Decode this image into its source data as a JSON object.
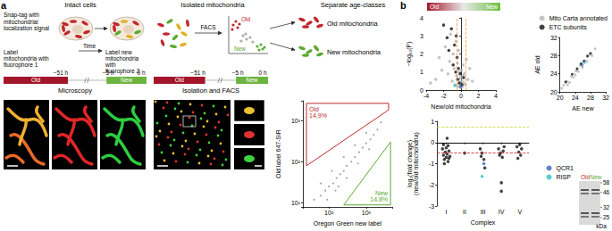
{
  "figure": {
    "panel_labels": [
      "a",
      "b"
    ],
    "a": {
      "headers": [
        "Intact cells",
        "Isolated mitochondria",
        "Separate age-classes"
      ],
      "snap_tag": "Snap-tag with mitochondrial localization signal",
      "step1": "Label mitochondria with fluorophore 1",
      "time": "Time",
      "step2": "Label new mitochondria with fluorophore 2",
      "facs_arrow": "FACS",
      "gate_old": "Old",
      "gate_new": "New",
      "old_mito": "Old mitochondria",
      "new_mito": "New mitochondria",
      "timelines": [
        {
          "times": [
            "−51 h",
            "−5 h",
            "0 h"
          ],
          "old": "Old",
          "new": "New",
          "caption": "Microscopy"
        },
        {
          "times": [
            "−51 h",
            "−5 h",
            "0 h"
          ],
          "old": "Old",
          "new": "New",
          "caption": "Isolation and FACS"
        }
      ]
    },
    "b": {
      "gradient": {
        "old": "Old",
        "new": "New"
      },
      "gel": {
        "lanes": [
          "Old",
          "New"
        ],
        "markers": [
          58,
          46,
          32,
          25
        ],
        "unit": "kDa"
      }
    }
  },
  "chart_data": [
    {
      "type": "scatter",
      "log": true,
      "x_label": "Oregon Green new label",
      "y_label": "Old label 647-SiR",
      "xlim": [
        20,
        5000
      ],
      "ylim": [
        8,
        3000
      ],
      "xticks": [
        {
          "value": 100,
          "label": "10²"
        },
        {
          "value": 1000,
          "label": "10³"
        }
      ],
      "yticks": [
        {
          "value": 10,
          "label": "10¹"
        },
        {
          "value": 100,
          "label": "10²"
        },
        {
          "value": 1000,
          "label": "10³"
        }
      ],
      "grid": false,
      "series": [
        {
          "color": "#8c8c8c",
          "values": [
            [
              40,
              12
            ],
            [
              60,
              15
            ],
            [
              80,
              20
            ],
            [
              100,
              25
            ],
            [
              130,
              30
            ],
            [
              160,
              40
            ],
            [
              200,
              50
            ],
            [
              250,
              60
            ],
            [
              300,
              80
            ],
            [
              400,
              100
            ],
            [
              500,
              130
            ],
            [
              650,
              170
            ],
            [
              800,
              220
            ],
            [
              1000,
              280
            ],
            [
              1300,
              350
            ],
            [
              1600,
              450
            ],
            [
              2000,
              600
            ],
            [
              60,
              30
            ],
            [
              120,
              60
            ],
            [
              250,
              130
            ],
            [
              500,
              250
            ],
            [
              1000,
              500
            ],
            [
              150,
              20
            ],
            [
              300,
              40
            ],
            [
              600,
              90
            ],
            [
              1200,
              200
            ],
            [
              2500,
              900
            ],
            [
              90,
              12
            ],
            [
              180,
              25
            ]
          ]
        }
      ],
      "gates": [
        {
          "name": "Old",
          "label": "14.9%",
          "color": "#c0282d",
          "x": [
            25,
            25,
            4000,
            4000,
            25
          ],
          "y": [
            80,
            2600,
            2600,
            1800,
            80
          ]
        },
        {
          "name": "New",
          "label": "14.8%",
          "color": "#5aaa32",
          "x": [
            250,
            4500,
            4500,
            250
          ],
          "y": [
            9,
            9,
            300,
            9
          ]
        }
      ]
    },
    {
      "type": "scatter",
      "x_label": "New/old mitochondria",
      "y_label": "−log₁₀(P)",
      "xlim": [
        -4,
        4
      ],
      "xticks": [
        -4,
        -2,
        0,
        2,
        4
      ],
      "ylim": [
        0,
        4
      ],
      "yticks": [
        0,
        1,
        2,
        3,
        4
      ],
      "grid": false,
      "legend": "upper right",
      "reference_lines": [
        {
          "axis": "x",
          "value": -0.5,
          "color": "#f0a030",
          "line_style": "dashed"
        },
        {
          "axis": "x",
          "value": 0.5,
          "color": "#f0a030",
          "line_style": "dashed"
        }
      ],
      "series": [
        {
          "name": "Mito Carta annotated",
          "color": "#b5b5b5",
          "values": [
            [
              -2.9,
              0.6
            ],
            [
              -2.2,
              1.1
            ],
            [
              -1.8,
              2.4
            ],
            [
              -1.5,
              0.9
            ],
            [
              -1.3,
              1.6
            ],
            [
              -1.2,
              3.1
            ],
            [
              -1.0,
              0.5
            ],
            [
              -0.9,
              2.0
            ],
            [
              -0.8,
              1.2
            ],
            [
              -0.7,
              0.3
            ],
            [
              -0.6,
              2.7
            ],
            [
              -0.5,
              0.8
            ],
            [
              -0.4,
              1.5
            ],
            [
              -0.35,
              0.2
            ],
            [
              -0.3,
              2.2
            ],
            [
              -0.25,
              0.6
            ],
            [
              -0.2,
              1.0
            ],
            [
              -0.15,
              0.4
            ],
            [
              -0.1,
              0.15
            ],
            [
              -0.05,
              0.7
            ],
            [
              0,
              0.3
            ],
            [
              0.05,
              1.1
            ],
            [
              0.1,
              0.5
            ],
            [
              0.15,
              0.2
            ],
            [
              0.2,
              0.8
            ],
            [
              0.25,
              1.4
            ],
            [
              0.3,
              0.4
            ],
            [
              0.4,
              0.9
            ],
            [
              0.5,
              0.3
            ],
            [
              0.6,
              1.7
            ],
            [
              0.8,
              0.6
            ],
            [
              1.0,
              1.2
            ],
            [
              1.3,
              0.5
            ],
            [
              -3.5,
              0.4
            ],
            [
              -2.5,
              1.8
            ]
          ]
        },
        {
          "name": "ETC subunits",
          "color": "#111111",
          "values": [
            [
              -2.0,
              3.6
            ],
            [
              -1.6,
              2.9
            ],
            [
              -1.4,
              2.2
            ],
            [
              -1.1,
              3.4
            ],
            [
              -0.9,
              1.4
            ],
            [
              -0.75,
              2.5
            ],
            [
              -0.6,
              1.0
            ],
            [
              -0.55,
              3.0
            ],
            [
              -0.45,
              1.8
            ],
            [
              -0.4,
              0.6
            ],
            [
              -0.3,
              1.2
            ],
            [
              -0.2,
              0.4
            ],
            [
              -0.1,
              0.9
            ],
            [
              0.1,
              0.3
            ],
            [
              0.3,
              0.7
            ],
            [
              -0.05,
              0.2
            ],
            [
              -0.7,
              0.25
            ]
          ],
          "colors": [
            "#111111",
            "#111111",
            "#111111",
            "#111111",
            "#111111",
            "#111111",
            "#111111",
            "#111111",
            "#111111",
            "#111111",
            "#111111",
            "#111111",
            "#111111",
            "#111111",
            "#111111",
            "#3b63c4",
            "#2fc0c9"
          ]
        }
      ]
    },
    {
      "type": "scatter",
      "x_label": "AE new",
      "y_label": "AE old",
      "xlim": [
        20,
        32
      ],
      "xticks": [
        20,
        24,
        28,
        32
      ],
      "ylim": [
        20,
        32
      ],
      "yticks": [
        20,
        24,
        28,
        32
      ],
      "grid": false,
      "series": [
        {
          "color": "#b5b5b5",
          "values": [
            [
              20.5,
              20.8
            ],
            [
              21,
              21.5
            ],
            [
              21.8,
              22.3
            ],
            [
              22.5,
              22.1
            ],
            [
              23,
              23.4
            ],
            [
              23.6,
              23.2
            ],
            [
              24.2,
              24.6
            ],
            [
              24.8,
              24.5
            ],
            [
              25.3,
              25.8
            ],
            [
              25.9,
              25.4
            ],
            [
              26.5,
              26.9
            ],
            [
              27.1,
              26.8
            ],
            [
              27.8,
              28.2
            ],
            [
              28.4,
              28.0
            ],
            [
              29.2,
              29.5
            ],
            [
              22,
              21.6
            ],
            [
              24,
              23.8
            ],
            [
              26,
              26.4
            ]
          ]
        },
        {
          "color": "#111111",
          "values": [
            [
              23.2,
              23.9
            ],
            [
              24.5,
              25.1
            ],
            [
              25.5,
              26.2
            ],
            [
              26.3,
              26.8
            ],
            [
              27.2,
              27.9
            ],
            [
              28,
              28.5
            ],
            [
              21.5,
              22.2
            ],
            [
              25.8,
              25.9
            ],
            [
              26.5,
              26.5
            ]
          ],
          "colors": [
            "#111111",
            "#111111",
            "#111111",
            "#111111",
            "#111111",
            "#111111",
            "#111111",
            "#3b63c4",
            "#2fc0c9"
          ]
        }
      ]
    },
    {
      "type": "scatter",
      "x_label": "Complex",
      "y_label": "log₂(fold change)\n(new/old mitochondria)",
      "xlim": [
        0.5,
        5.5
      ],
      "xticks": [
        {
          "value": 1,
          "label": "I"
        },
        {
          "value": 2,
          "label": "II"
        },
        {
          "value": 3,
          "label": "III"
        },
        {
          "value": 4,
          "label": "IV"
        },
        {
          "value": 5,
          "label": "V"
        }
      ],
      "ylim": [
        -3,
        1
      ],
      "yticks": [
        -3,
        -2,
        -1,
        0,
        1
      ],
      "grid": false,
      "legend": "right",
      "reference_lines": [
        {
          "axis": "y",
          "value": 0,
          "color": "#000000",
          "line_style": "solid"
        },
        {
          "axis": "y",
          "value": -0.5,
          "color": "#d6232a",
          "line_style": "dashed"
        },
        {
          "axis": "y",
          "value": 0.75,
          "color": "#c8d630",
          "line_style": "dashed"
        }
      ],
      "series": [
        {
          "color": "#111111",
          "values": [
            [
              0.8,
              -0.3
            ],
            [
              0.85,
              -0.6
            ],
            [
              0.9,
              -0.8
            ],
            [
              0.95,
              -0.45
            ],
            [
              1.0,
              -0.7
            ],
            [
              1.05,
              -0.55
            ],
            [
              1.1,
              -0.9
            ],
            [
              1.15,
              -0.4
            ],
            [
              1.2,
              -0.65
            ],
            [
              0.9,
              -1.0
            ],
            [
              1.0,
              -0.25
            ],
            [
              1.1,
              -0.15
            ],
            [
              1.05,
              0.2
            ],
            [
              0.85,
              -0.1
            ],
            [
              1.15,
              -0.75
            ],
            [
              2.0,
              -0.5
            ],
            [
              2.85,
              -0.3
            ],
            [
              2.95,
              -0.5
            ],
            [
              3.05,
              -0.8
            ],
            [
              3.1,
              -1.2
            ],
            [
              2.9,
              -0.65
            ],
            [
              3.85,
              -0.3
            ],
            [
              3.95,
              -0.5
            ],
            [
              4.05,
              -0.7
            ],
            [
              4.1,
              -0.4
            ],
            [
              4.0,
              -1.9
            ],
            [
              3.9,
              -0.6
            ],
            [
              4.15,
              -0.2
            ],
            [
              4.0,
              -2.3
            ],
            [
              4.85,
              -0.2
            ],
            [
              4.95,
              -0.45
            ],
            [
              5.05,
              -0.6
            ],
            [
              5.1,
              -0.3
            ],
            [
              4.9,
              -0.75
            ],
            [
              5.0,
              -0.1
            ]
          ]
        },
        {
          "name": "QCR1",
          "color": "#3b63c4",
          "values": [
            [
              3.05,
              -1.0
            ]
          ]
        },
        {
          "name": "RISP",
          "color": "#2fc0c9",
          "values": [
            [
              2.95,
              -1.6
            ]
          ]
        }
      ]
    }
  ]
}
